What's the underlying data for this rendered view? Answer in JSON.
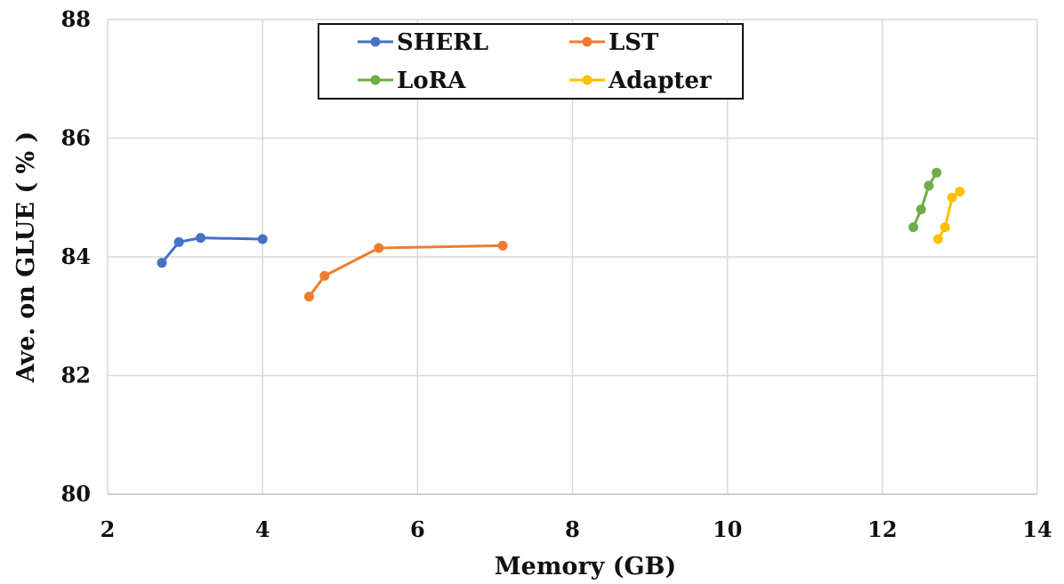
{
  "chart_data": {
    "type": "line",
    "title": "",
    "xlabel": "Memory (GB)",
    "ylabel": "Ave. on GLUE ( % )",
    "xlim": [
      2,
      14
    ],
    "ylim": [
      80,
      88
    ],
    "xticks": [
      2,
      4,
      6,
      8,
      10,
      12,
      14
    ],
    "yticks": [
      80,
      82,
      84,
      86,
      88
    ],
    "grid": true,
    "legend_position": "top",
    "series": [
      {
        "name": "SHERL",
        "color": "#4472C4",
        "points": [
          {
            "x": 2.7,
            "y": 83.9
          },
          {
            "x": 2.92,
            "y": 84.25
          },
          {
            "x": 3.2,
            "y": 84.32
          },
          {
            "x": 4.0,
            "y": 84.3
          }
        ]
      },
      {
        "name": "LST",
        "color": "#ED7D31",
        "points": [
          {
            "x": 4.6,
            "y": 83.33
          },
          {
            "x": 4.8,
            "y": 83.68
          },
          {
            "x": 5.5,
            "y": 84.15
          },
          {
            "x": 7.1,
            "y": 84.19
          }
        ]
      },
      {
        "name": "LoRA",
        "color": "#70AD47",
        "points": [
          {
            "x": 12.4,
            "y": 84.5
          },
          {
            "x": 12.5,
            "y": 84.8
          },
          {
            "x": 12.6,
            "y": 85.2
          },
          {
            "x": 12.7,
            "y": 85.42
          }
        ]
      },
      {
        "name": "Adapter",
        "color": "#FFC000",
        "points": [
          {
            "x": 12.72,
            "y": 84.3
          },
          {
            "x": 12.81,
            "y": 84.5
          },
          {
            "x": 12.9,
            "y": 85.0
          },
          {
            "x": 13.0,
            "y": 85.1
          }
        ]
      }
    ]
  }
}
